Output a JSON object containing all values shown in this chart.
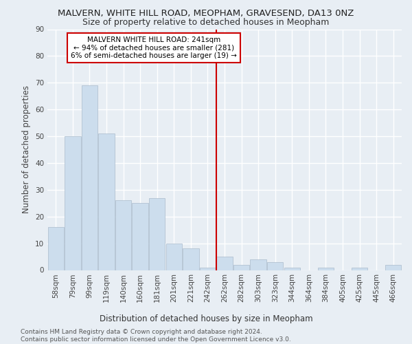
{
  "title": "MALVERN, WHITE HILL ROAD, MEOPHAM, GRAVESEND, DA13 0NZ",
  "subtitle": "Size of property relative to detached houses in Meopham",
  "xlabel": "Distribution of detached houses by size in Meopham",
  "ylabel": "Number of detached properties",
  "footer": "Contains HM Land Registry data © Crown copyright and database right 2024.\nContains public sector information licensed under the Open Government Licence v3.0.",
  "categories": [
    "58sqm",
    "79sqm",
    "99sqm",
    "119sqm",
    "140sqm",
    "160sqm",
    "181sqm",
    "201sqm",
    "221sqm",
    "242sqm",
    "262sqm",
    "282sqm",
    "303sqm",
    "323sqm",
    "344sqm",
    "364sqm",
    "384sqm",
    "405sqm",
    "425sqm",
    "445sqm",
    "466sqm"
  ],
  "values": [
    16,
    50,
    69,
    51,
    26,
    25,
    27,
    10,
    8,
    1,
    5,
    2,
    4,
    3,
    1,
    0,
    1,
    0,
    1,
    0,
    2
  ],
  "bar_color": "#ccdded",
  "bar_edge_color": "#aabbcc",
  "vline_color": "#cc0000",
  "annotation_text": "MALVERN WHITE HILL ROAD: 241sqm\n← 94% of detached houses are smaller (281)\n6% of semi-detached houses are larger (19) →",
  "annotation_box_color": "#ffffff",
  "annotation_box_edge": "#cc0000",
  "ylim": [
    0,
    90
  ],
  "yticks": [
    0,
    10,
    20,
    30,
    40,
    50,
    60,
    70,
    80,
    90
  ],
  "bg_color": "#e8eef4",
  "plot_bg_color": "#e8eef4",
  "grid_color": "#ffffff",
  "title_fontsize": 9.5,
  "subtitle_fontsize": 9,
  "axis_label_fontsize": 8.5,
  "tick_fontsize": 7.5,
  "footer_fontsize": 6.5,
  "annotation_fontsize": 7.5
}
